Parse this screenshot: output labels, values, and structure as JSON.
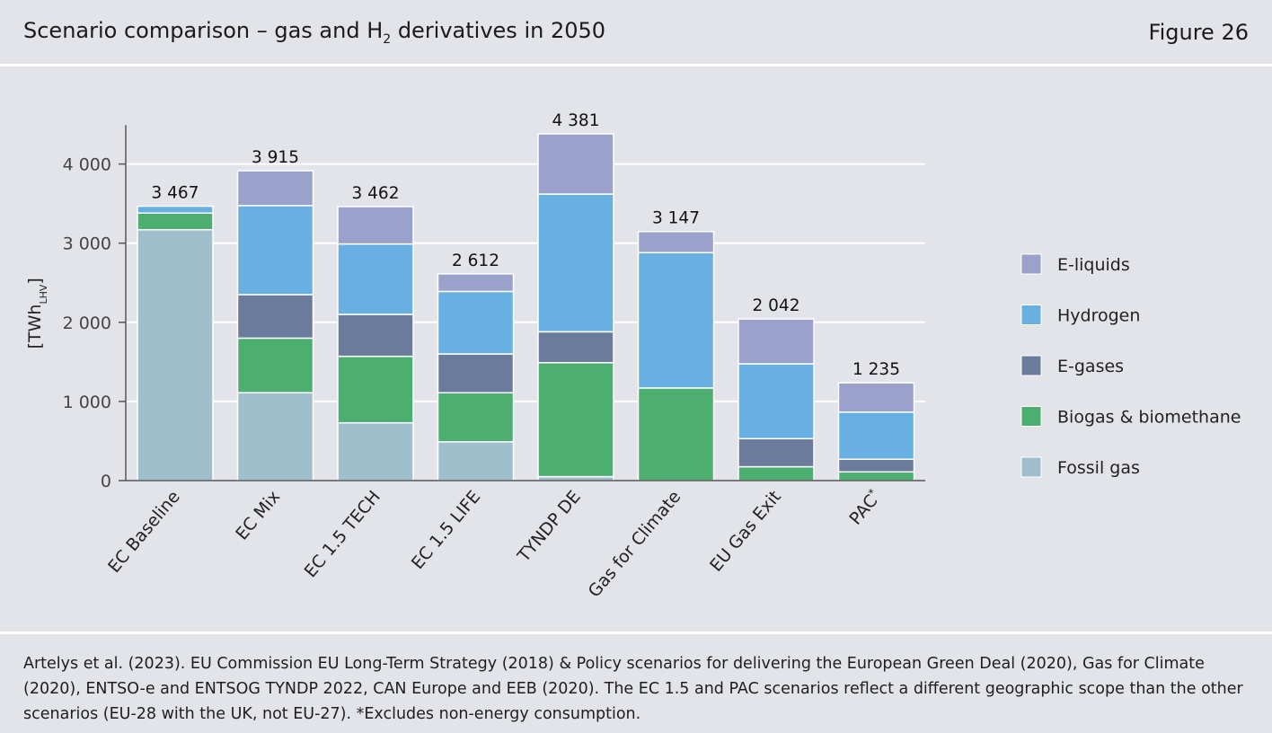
{
  "header": {
    "title_main": "Scenario comparison – gas and H",
    "title_sub": "2",
    "title_tail": " derivatives in 2050",
    "figure_label": "Figure 26"
  },
  "colors": {
    "fossil": "#a0bfcd",
    "bio": "#4caf70",
    "egas": "#6a7b9c",
    "hydrogen": "#67b0e1",
    "eliquids": "#9aa1cb",
    "gridline": "#ffffff",
    "axis": "#555555"
  },
  "chart_data": {
    "type": "bar",
    "stacked": true,
    "ylabel_main": "[TWh",
    "ylabel_sub": "LHV",
    "ylabel_close": "]",
    "ylim": [
      0,
      4400
    ],
    "yticks": [
      0,
      1000,
      2000,
      3000,
      4000
    ],
    "ytick_labels": [
      "0",
      "1 000",
      "2 000",
      "3 000",
      "4 000"
    ],
    "grid": true,
    "legend_position": "right",
    "categories": [
      "EC Baseline",
      "EC Mix",
      "EC 1.5 TECH",
      "EC 1.5 LIFE",
      "TYNDP DE",
      "Gas for Climate",
      "EU Gas Exit",
      "PAC"
    ],
    "category_superscripts": [
      "",
      "",
      "",
      "",
      "",
      "",
      "",
      "*"
    ],
    "totals": [
      3467,
      3915,
      3462,
      2612,
      4381,
      3147,
      2042,
      1235
    ],
    "total_labels": [
      "3 467",
      "3 915",
      "3 462",
      "2 612",
      "4 381",
      "3 147",
      "2 042",
      "1 235"
    ],
    "series": [
      {
        "name": "Fossil gas",
        "key": "fossil",
        "values": [
          3170,
          1110,
          730,
          490,
          50,
          0,
          0,
          0
        ]
      },
      {
        "name": "Biogas & biomethane",
        "key": "bio",
        "values": [
          210,
          690,
          840,
          620,
          1440,
          1170,
          175,
          110
        ]
      },
      {
        "name": "E-gases",
        "key": "egas",
        "values": [
          0,
          550,
          530,
          490,
          390,
          0,
          355,
          160
        ]
      },
      {
        "name": "Hydrogen",
        "key": "hydrogen",
        "values": [
          87,
          1125,
          890,
          790,
          1740,
          1710,
          945,
          595
        ]
      },
      {
        "name": "E-liquids",
        "key": "eliquids",
        "values": [
          0,
          440,
          472,
          222,
          761,
          267,
          567,
          370
        ]
      }
    ],
    "legend_order": [
      "E-liquids",
      "Hydrogen",
      "E-gases",
      "Biogas & biomethane",
      "Fossil gas"
    ]
  },
  "footer": {
    "source_text": "Artelys et al. (2023). EU Commission EU Long-Term Strategy (2018) & Policy scenarios for delivering the European Green Deal (2020), Gas for Climate (2020), ENTSO-e and ENTSOG TYNDP 2022, CAN Europe and EEB (2020). The EC 1.5 and PAC scenarios reflect a different geographic scope than the other scenarios (EU-28 with the UK, not EU-27). *Excludes non-energy consumption."
  }
}
